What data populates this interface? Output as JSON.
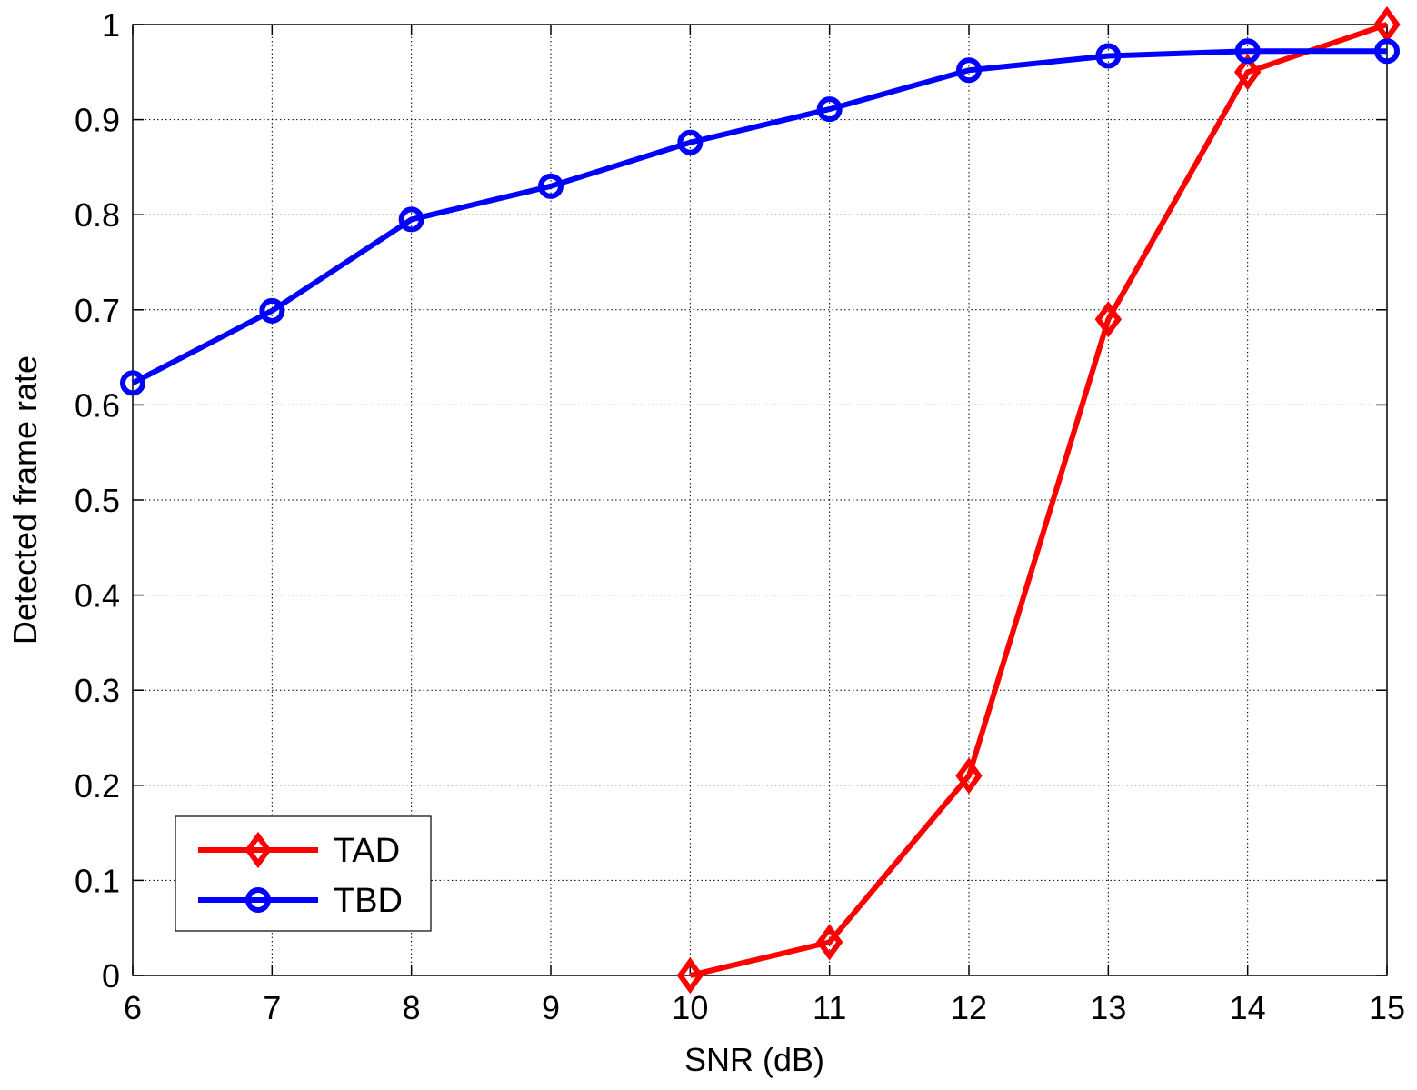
{
  "chart_data": {
    "type": "line",
    "title": "",
    "xlabel": "SNR (dB)",
    "ylabel": "Detected frame rate",
    "xlim": [
      6,
      15
    ],
    "ylim": [
      0,
      1
    ],
    "xticks": [
      6,
      7,
      8,
      9,
      10,
      11,
      12,
      13,
      14,
      15
    ],
    "yticks": [
      0,
      0.1,
      0.2,
      0.3,
      0.4,
      0.5,
      0.6,
      0.7,
      0.8,
      0.9,
      1
    ],
    "xtick_labels": [
      "6",
      "7",
      "8",
      "9",
      "10",
      "11",
      "12",
      "13",
      "14",
      "15"
    ],
    "ytick_labels": [
      "0",
      "0.1",
      "0.2",
      "0.3",
      "0.4",
      "0.5",
      "0.6",
      "0.7",
      "0.8",
      "0.9",
      "1"
    ],
    "grid": true,
    "legend_position": "bottom-left",
    "series": [
      {
        "name": "TAD",
        "color": "#ff0000",
        "marker": "diamond",
        "x": [
          10,
          11,
          12,
          13,
          14,
          15
        ],
        "y": [
          0.0,
          0.035,
          0.21,
          0.69,
          0.95,
          1.0
        ]
      },
      {
        "name": "TBD",
        "color": "#0000ff",
        "marker": "circle",
        "x": [
          6,
          7,
          8,
          9,
          10,
          11,
          12,
          13,
          14,
          15
        ],
        "y": [
          0.623,
          0.699,
          0.795,
          0.83,
          0.876,
          0.911,
          0.952,
          0.967,
          0.972,
          0.972
        ]
      }
    ]
  }
}
